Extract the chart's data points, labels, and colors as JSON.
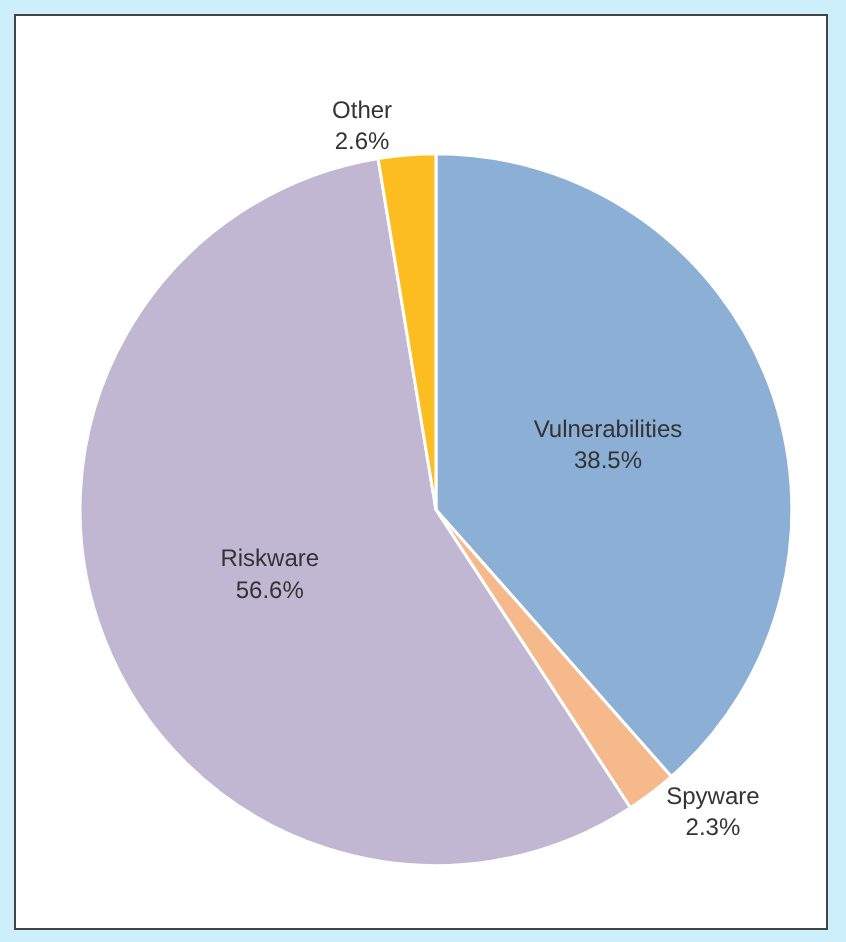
{
  "chart_data": {
    "type": "pie",
    "categories": [
      "Vulnerabilities",
      "Spyware",
      "Riskware",
      "Other"
    ],
    "values": [
      38.5,
      2.3,
      56.6,
      2.6
    ],
    "value_labels": [
      "38.5%",
      "2.3%",
      "56.6%",
      "2.6%"
    ],
    "colors": [
      "#8cafd6",
      "#f6b98b",
      "#c1b7d3",
      "#fbbd1f"
    ],
    "legend": false
  }
}
